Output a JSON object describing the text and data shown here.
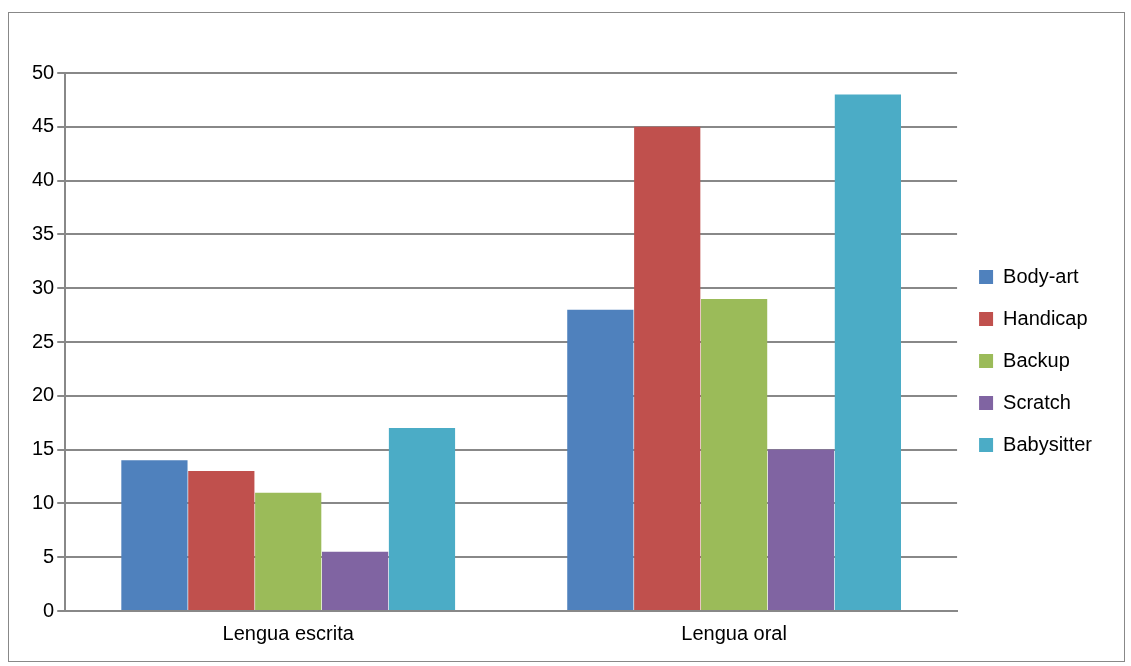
{
  "chart_data": {
    "type": "bar",
    "categories": [
      "Lengua escrita",
      "Lengua oral"
    ],
    "series": [
      {
        "name": "Body-art",
        "color": "#4f81bd",
        "values": [
          14,
          28
        ]
      },
      {
        "name": "Handicap",
        "color": "#c0504d",
        "values": [
          13,
          45
        ]
      },
      {
        "name": "Backup",
        "color": "#9bbb59",
        "values": [
          11,
          29
        ]
      },
      {
        "name": "Scratch",
        "color": "#8064a2",
        "values": [
          5.5,
          15
        ]
      },
      {
        "name": "Babysitter",
        "color": "#4bacc6",
        "values": [
          17,
          48
        ]
      }
    ],
    "ylim": [
      0,
      50
    ],
    "yticks": [
      0,
      5,
      10,
      15,
      20,
      25,
      30,
      35,
      40,
      45,
      50
    ],
    "grid": "y",
    "legend": "right"
  }
}
